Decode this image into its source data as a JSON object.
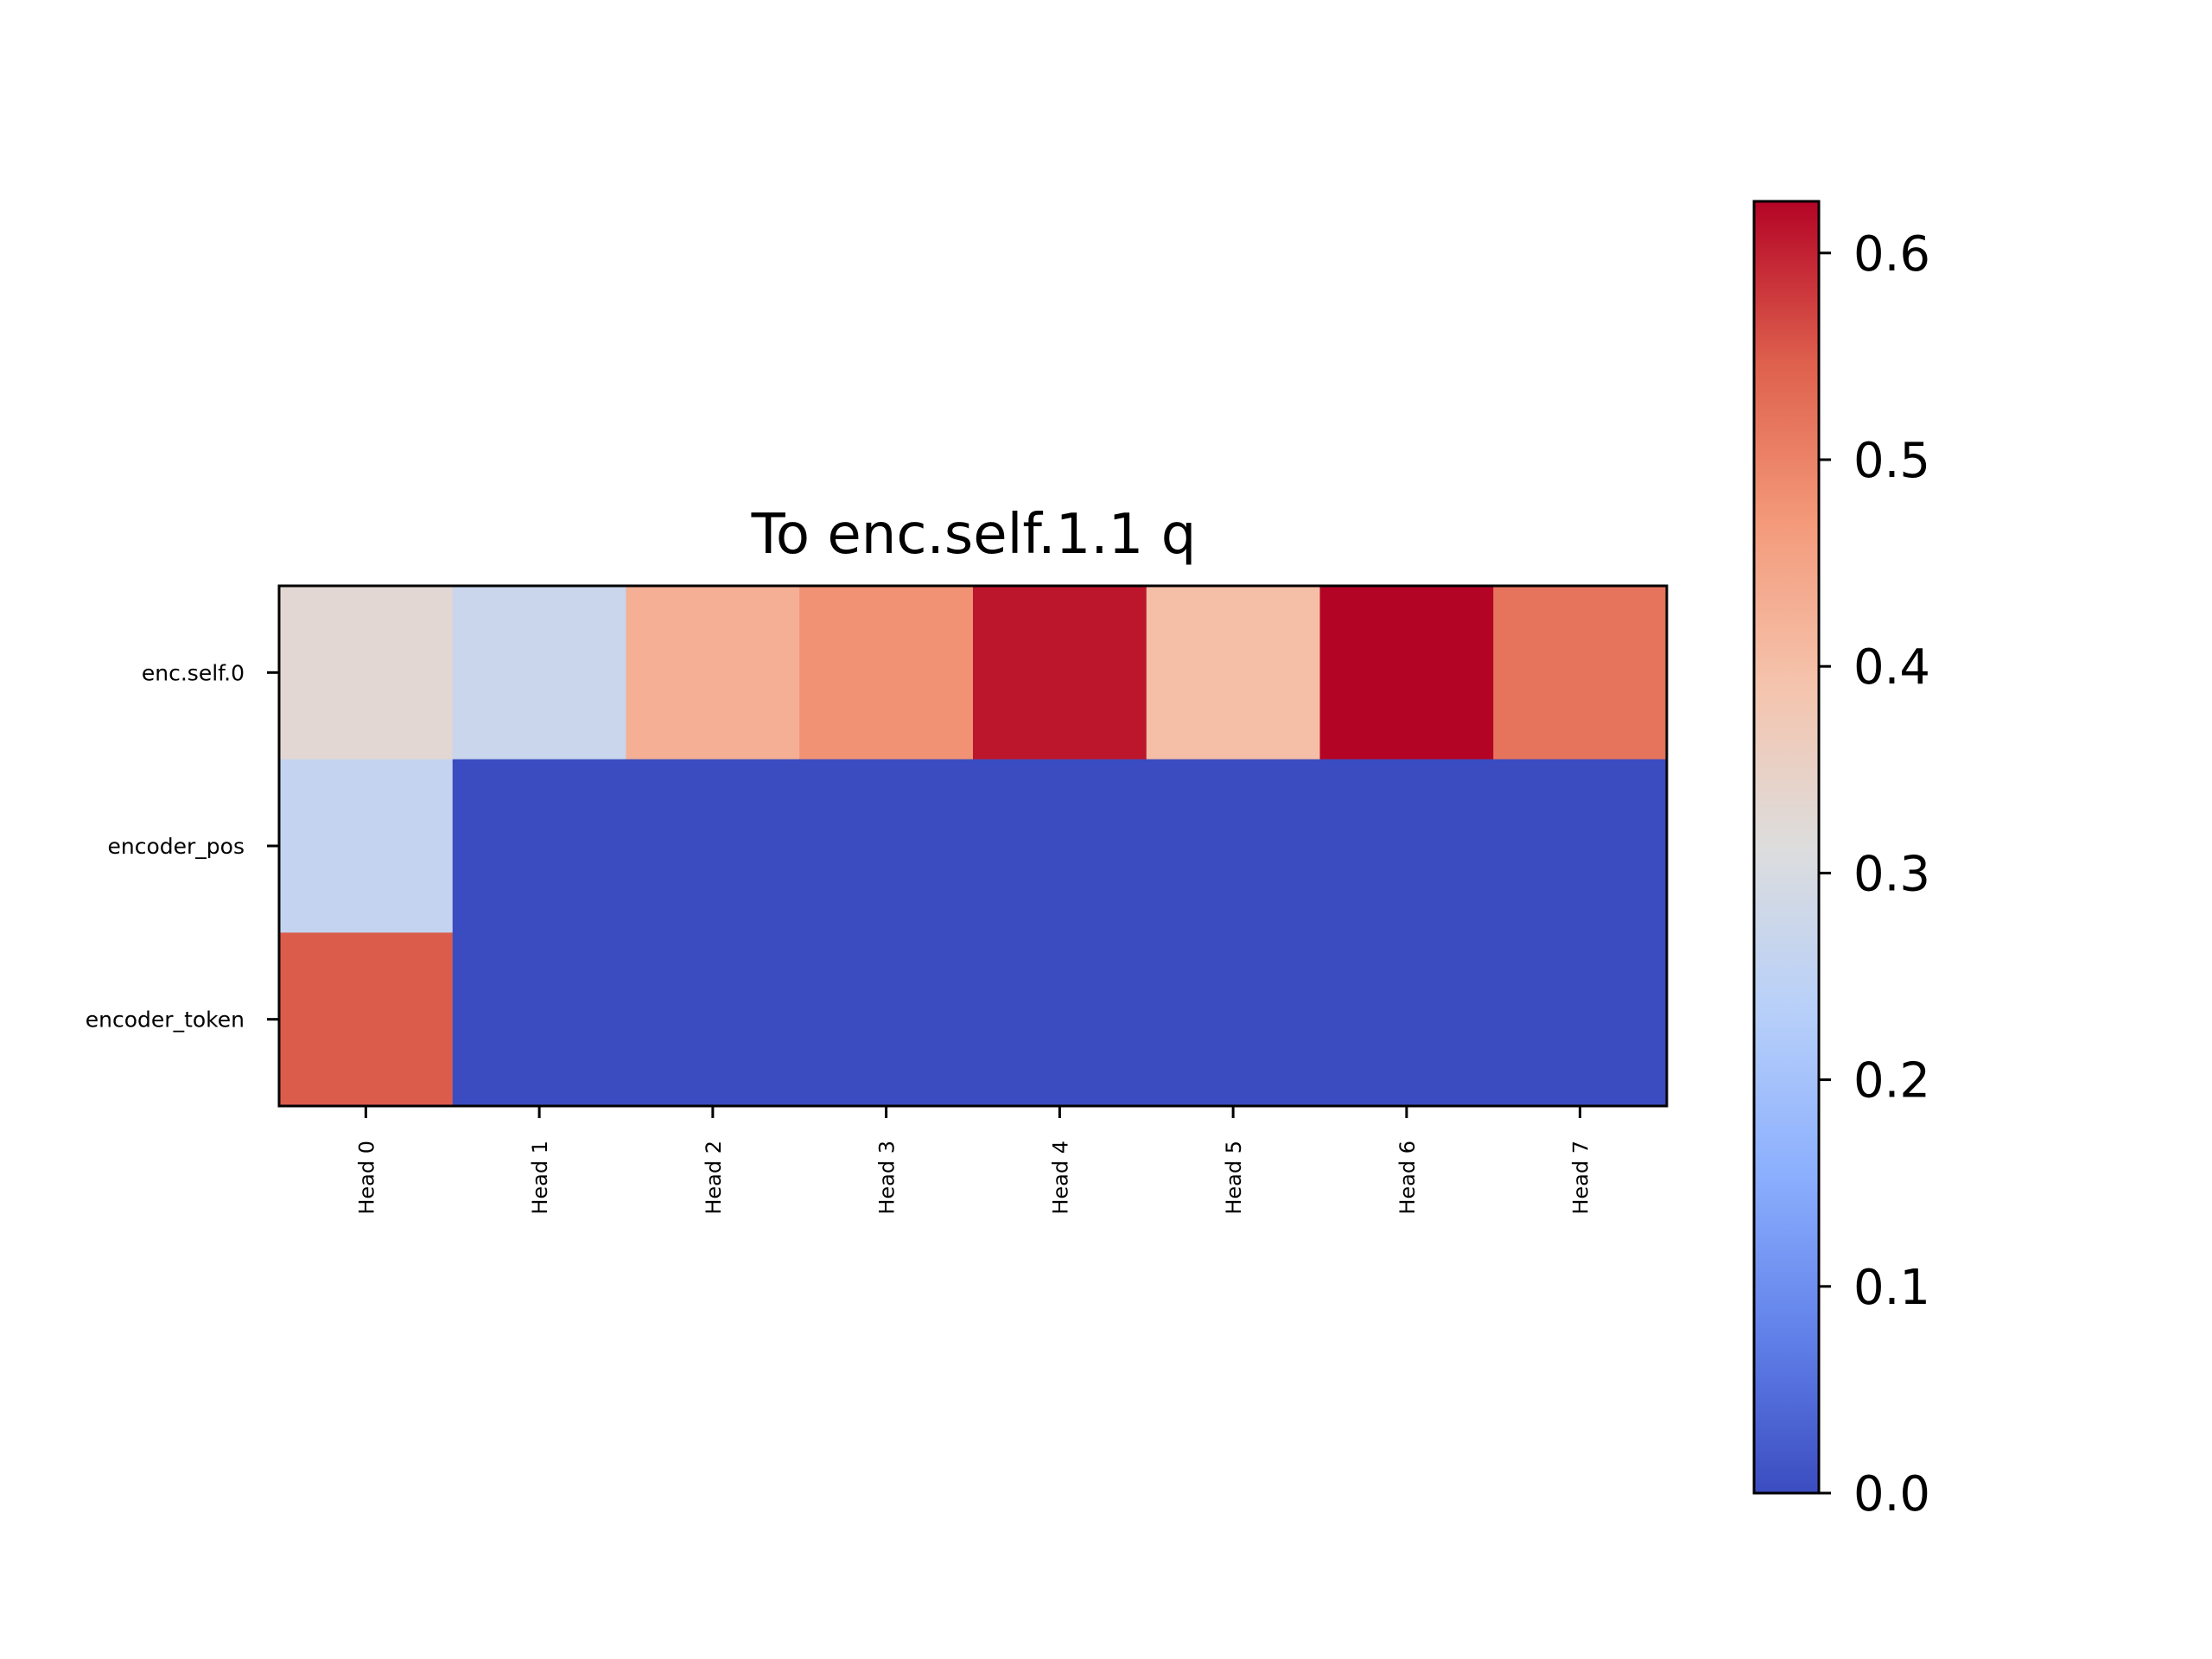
{
  "chart_data": {
    "type": "heatmap",
    "title": "To enc.self.1.1 q",
    "xlabel": "",
    "ylabel": "",
    "x_categories": [
      "Head 0",
      "Head 1",
      "Head 2",
      "Head 3",
      "Head 4",
      "Head 5",
      "Head 6",
      "Head 7"
    ],
    "y_categories": [
      "enc.self.0",
      "encoder_pos",
      "encoder_token"
    ],
    "values": [
      [
        0.33,
        0.27,
        0.43,
        0.48,
        0.61,
        0.4,
        0.625,
        0.52
      ],
      [
        0.26,
        0.0,
        0.0,
        0.0,
        0.0,
        0.0,
        0.0,
        0.0
      ],
      [
        0.55,
        0.0,
        0.0,
        0.0,
        0.0,
        0.0,
        0.0,
        0.0
      ]
    ],
    "colormap": "coolwarm",
    "vmin": 0.0,
    "vmax": 0.625,
    "colorbar": {
      "ticks": [
        0.0,
        0.1,
        0.2,
        0.3,
        0.4,
        0.5,
        0.6
      ],
      "tick_labels": [
        "0.0",
        "0.1",
        "0.2",
        "0.3",
        "0.4",
        "0.5",
        "0.6"
      ]
    },
    "grid": false
  }
}
